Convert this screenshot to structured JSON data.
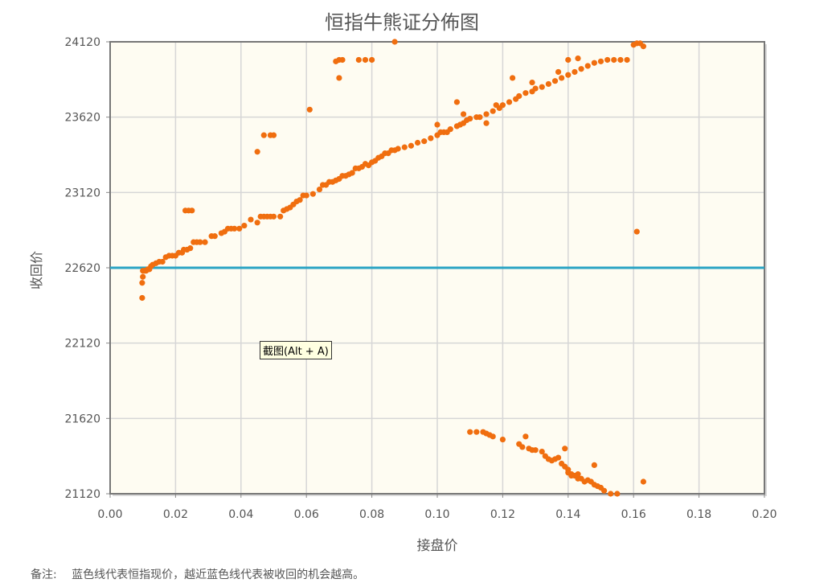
{
  "chart_data": {
    "type": "scatter",
    "title": "恒指牛熊证分佈图",
    "xlabel": "接盘价",
    "ylabel": "收回价",
    "xlim": [
      0.0,
      0.2
    ],
    "ylim": [
      21120,
      24120
    ],
    "xticks": [
      "0.00",
      "0.02",
      "0.04",
      "0.06",
      "0.08",
      "0.10",
      "0.12",
      "0.14",
      "0.16",
      "0.18",
      "0.20"
    ],
    "yticks": [
      "21120",
      "21620",
      "22120",
      "22620",
      "23120",
      "23620",
      "24120"
    ],
    "grid": true,
    "reference_line": {
      "y": 22620,
      "color": "#2aa4c4"
    },
    "point_color": "#f06e0f",
    "plot_background": "#fefcf2",
    "series": [
      {
        "points": [
          [
            0.0098,
            22420
          ],
          [
            0.0098,
            22520
          ],
          [
            0.01,
            22560
          ],
          [
            0.01,
            22600
          ],
          [
            0.0105,
            22600
          ],
          [
            0.011,
            22600
          ],
          [
            0.0115,
            22610
          ],
          [
            0.012,
            22610
          ],
          [
            0.0125,
            22630
          ],
          [
            0.013,
            22640
          ],
          [
            0.014,
            22650
          ],
          [
            0.015,
            22660
          ],
          [
            0.016,
            22660
          ],
          [
            0.017,
            22690
          ],
          [
            0.018,
            22700
          ],
          [
            0.019,
            22700
          ],
          [
            0.02,
            22700
          ],
          [
            0.021,
            22720
          ],
          [
            0.022,
            22720
          ],
          [
            0.0225,
            22740
          ],
          [
            0.0235,
            22740
          ],
          [
            0.0245,
            22750
          ],
          [
            0.0255,
            22790
          ],
          [
            0.0265,
            22790
          ],
          [
            0.0275,
            22790
          ],
          [
            0.029,
            22790
          ],
          [
            0.031,
            22830
          ],
          [
            0.032,
            22830
          ],
          [
            0.034,
            22850
          ],
          [
            0.035,
            22860
          ],
          [
            0.036,
            22880
          ],
          [
            0.037,
            22880
          ],
          [
            0.038,
            22880
          ],
          [
            0.0395,
            22880
          ],
          [
            0.041,
            22900
          ],
          [
            0.043,
            22940
          ],
          [
            0.045,
            22920
          ],
          [
            0.046,
            22960
          ],
          [
            0.047,
            22960
          ],
          [
            0.048,
            22960
          ],
          [
            0.049,
            22960
          ],
          [
            0.05,
            22960
          ],
          [
            0.052,
            22960
          ],
          [
            0.053,
            23000
          ],
          [
            0.054,
            23010
          ],
          [
            0.055,
            23020
          ],
          [
            0.056,
            23040
          ],
          [
            0.057,
            23060
          ],
          [
            0.058,
            23070
          ],
          [
            0.059,
            23100
          ],
          [
            0.06,
            23100
          ],
          [
            0.062,
            23110
          ],
          [
            0.064,
            23140
          ],
          [
            0.065,
            23170
          ],
          [
            0.066,
            23170
          ],
          [
            0.067,
            23190
          ],
          [
            0.068,
            23190
          ],
          [
            0.069,
            23200
          ],
          [
            0.07,
            23210
          ],
          [
            0.071,
            23230
          ],
          [
            0.072,
            23230
          ],
          [
            0.073,
            23240
          ],
          [
            0.074,
            23250
          ],
          [
            0.075,
            23280
          ],
          [
            0.076,
            23280
          ],
          [
            0.077,
            23290
          ],
          [
            0.078,
            23310
          ],
          [
            0.079,
            23300
          ],
          [
            0.08,
            23320
          ],
          [
            0.081,
            23330
          ],
          [
            0.082,
            23350
          ],
          [
            0.083,
            23360
          ],
          [
            0.084,
            23380
          ],
          [
            0.085,
            23380
          ],
          [
            0.086,
            23400
          ],
          [
            0.087,
            23400
          ],
          [
            0.088,
            23410
          ],
          [
            0.09,
            23420
          ],
          [
            0.092,
            23430
          ],
          [
            0.094,
            23450
          ],
          [
            0.096,
            23460
          ],
          [
            0.098,
            23480
          ],
          [
            0.1,
            23500
          ],
          [
            0.101,
            23520
          ],
          [
            0.102,
            23520
          ],
          [
            0.103,
            23520
          ],
          [
            0.104,
            23540
          ],
          [
            0.106,
            23560
          ],
          [
            0.107,
            23570
          ],
          [
            0.108,
            23580
          ],
          [
            0.109,
            23600
          ],
          [
            0.11,
            23610
          ],
          [
            0.112,
            23620
          ],
          [
            0.113,
            23620
          ],
          [
            0.115,
            23640
          ],
          [
            0.117,
            23660
          ],
          [
            0.119,
            23680
          ],
          [
            0.12,
            23700
          ],
          [
            0.122,
            23720
          ],
          [
            0.124,
            23740
          ],
          [
            0.125,
            23760
          ],
          [
            0.127,
            23780
          ],
          [
            0.129,
            23790
          ],
          [
            0.13,
            23810
          ],
          [
            0.132,
            23820
          ],
          [
            0.134,
            23840
          ],
          [
            0.136,
            23860
          ],
          [
            0.138,
            23880
          ],
          [
            0.14,
            23900
          ],
          [
            0.142,
            23920
          ],
          [
            0.144,
            23940
          ],
          [
            0.146,
            23960
          ],
          [
            0.148,
            23980
          ],
          [
            0.15,
            23990
          ],
          [
            0.152,
            24000
          ],
          [
            0.154,
            24000
          ],
          [
            0.156,
            24000
          ],
          [
            0.158,
            24000
          ],
          [
            0.16,
            24100
          ],
          [
            0.161,
            24110
          ],
          [
            0.162,
            24110
          ],
          [
            0.163,
            24090
          ],
          [
            0.023,
            23000
          ],
          [
            0.024,
            23000
          ],
          [
            0.025,
            23000
          ],
          [
            0.045,
            23390
          ],
          [
            0.047,
            23500
          ],
          [
            0.049,
            23500
          ],
          [
            0.05,
            23500
          ],
          [
            0.061,
            23670
          ],
          [
            0.069,
            23990
          ],
          [
            0.07,
            24000
          ],
          [
            0.071,
            24000
          ],
          [
            0.07,
            23880
          ],
          [
            0.076,
            24000
          ],
          [
            0.078,
            24000
          ],
          [
            0.08,
            24000
          ],
          [
            0.087,
            24120
          ],
          [
            0.1,
            23570
          ],
          [
            0.106,
            23720
          ],
          [
            0.108,
            23640
          ],
          [
            0.115,
            23580
          ],
          [
            0.118,
            23700
          ],
          [
            0.123,
            23880
          ],
          [
            0.129,
            23850
          ],
          [
            0.137,
            23920
          ],
          [
            0.14,
            24000
          ],
          [
            0.143,
            24010
          ],
          [
            0.161,
            22860
          ],
          [
            0.11,
            21530
          ],
          [
            0.112,
            21530
          ],
          [
            0.114,
            21530
          ],
          [
            0.115,
            21520
          ],
          [
            0.116,
            21510
          ],
          [
            0.117,
            21500
          ],
          [
            0.12,
            21480
          ],
          [
            0.125,
            21450
          ],
          [
            0.126,
            21430
          ],
          [
            0.127,
            21500
          ],
          [
            0.128,
            21420
          ],
          [
            0.129,
            21410
          ],
          [
            0.13,
            21410
          ],
          [
            0.132,
            21400
          ],
          [
            0.133,
            21370
          ],
          [
            0.134,
            21350
          ],
          [
            0.135,
            21340
          ],
          [
            0.136,
            21350
          ],
          [
            0.137,
            21360
          ],
          [
            0.138,
            21320
          ],
          [
            0.139,
            21300
          ],
          [
            0.139,
            21420
          ],
          [
            0.14,
            21280
          ],
          [
            0.141,
            21250
          ],
          [
            0.142,
            21240
          ],
          [
            0.143,
            21220
          ],
          [
            0.144,
            21220
          ],
          [
            0.145,
            21200
          ],
          [
            0.146,
            21210
          ],
          [
            0.147,
            21200
          ],
          [
            0.148,
            21180
          ],
          [
            0.149,
            21170
          ],
          [
            0.15,
            21160
          ],
          [
            0.151,
            21140
          ],
          [
            0.153,
            21120
          ],
          [
            0.155,
            21120
          ],
          [
            0.148,
            21310
          ],
          [
            0.163,
            21200
          ],
          [
            0.14,
            21260
          ],
          [
            0.141,
            21240
          ],
          [
            0.143,
            21250
          ]
        ]
      }
    ]
  },
  "note": {
    "label": "备注:",
    "text": "蓝色线代表恒指现价，越近蓝色线代表被收回的机会越高。"
  },
  "tooltip": {
    "text": "截图(Alt + A)"
  }
}
